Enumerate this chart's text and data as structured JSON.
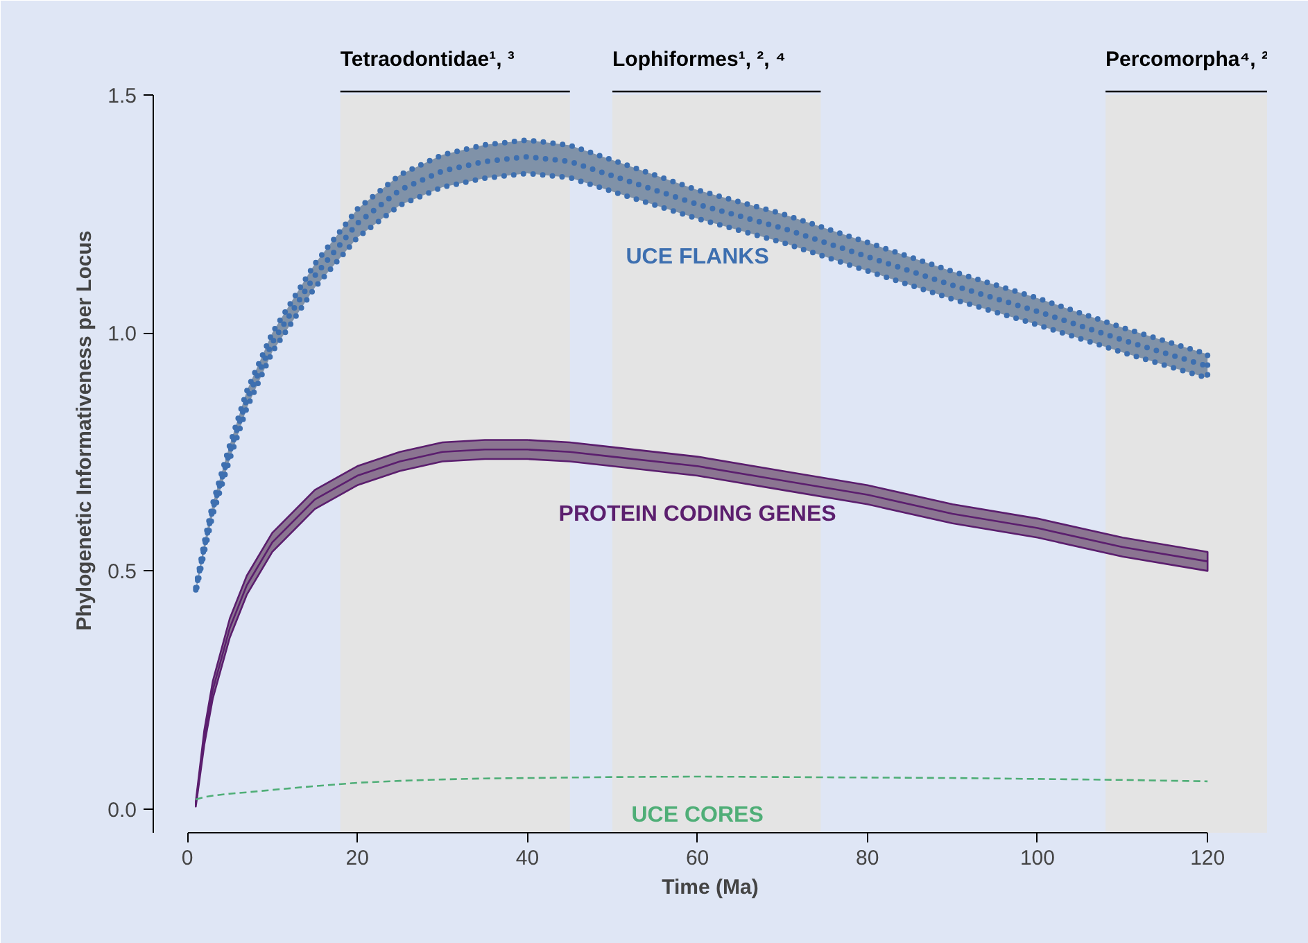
{
  "chart_data": {
    "type": "line",
    "xlabel": "Time (Ma)",
    "ylabel": "Phylogenetic Informativeness per Locus",
    "x": [
      1,
      2,
      3,
      5,
      7,
      10,
      15,
      20,
      25,
      30,
      35,
      40,
      45,
      50,
      60,
      70,
      80,
      90,
      100,
      110,
      120
    ],
    "series": [
      {
        "name": "UCE FLANKS",
        "color": "#3d6fb0",
        "line_style": "dotted",
        "values": [
          0.46,
          0.55,
          0.63,
          0.75,
          0.86,
          0.98,
          1.12,
          1.23,
          1.3,
          1.34,
          1.36,
          1.37,
          1.36,
          1.33,
          1.27,
          1.22,
          1.16,
          1.1,
          1.045,
          0.985,
          0.93
        ],
        "lower": [
          0.455,
          0.54,
          0.618,
          0.735,
          0.842,
          0.96,
          1.095,
          1.2,
          1.268,
          1.306,
          1.325,
          1.335,
          1.326,
          1.297,
          1.24,
          1.19,
          1.13,
          1.071,
          1.017,
          0.959,
          0.905
        ],
        "upper": [
          0.465,
          0.56,
          0.642,
          0.765,
          0.878,
          1.0,
          1.145,
          1.26,
          1.332,
          1.374,
          1.395,
          1.405,
          1.394,
          1.363,
          1.3,
          1.25,
          1.19,
          1.129,
          1.073,
          1.011,
          0.955
        ]
      },
      {
        "name": "PROTEIN CODING GENES",
        "color": "#5b1e6e",
        "line_style": "solid",
        "values": [
          0.01,
          0.15,
          0.25,
          0.38,
          0.47,
          0.56,
          0.65,
          0.7,
          0.73,
          0.75,
          0.755,
          0.755,
          0.75,
          0.74,
          0.72,
          0.69,
          0.66,
          0.62,
          0.59,
          0.55,
          0.52
        ],
        "lower": [
          0.005,
          0.135,
          0.232,
          0.36,
          0.45,
          0.54,
          0.63,
          0.68,
          0.71,
          0.73,
          0.735,
          0.735,
          0.73,
          0.72,
          0.7,
          0.67,
          0.64,
          0.6,
          0.57,
          0.53,
          0.5
        ],
        "upper": [
          0.015,
          0.165,
          0.268,
          0.4,
          0.49,
          0.58,
          0.67,
          0.72,
          0.75,
          0.77,
          0.775,
          0.775,
          0.77,
          0.76,
          0.74,
          0.71,
          0.68,
          0.64,
          0.61,
          0.57,
          0.54
        ]
      },
      {
        "name": "UCE CORES",
        "color": "#4fae77",
        "line_style": "dashed",
        "values": [
          0.02,
          0.025,
          0.028,
          0.032,
          0.035,
          0.04,
          0.048,
          0.055,
          0.059,
          0.062,
          0.064,
          0.065,
          0.066,
          0.067,
          0.068,
          0.067,
          0.066,
          0.065,
          0.063,
          0.061,
          0.058
        ]
      }
    ],
    "bands": [
      {
        "axis": "x",
        "from": 18,
        "to": 45,
        "label": "Tetraodontidae¹, ³",
        "color": "#e4e4e4"
      },
      {
        "axis": "x",
        "from": 50,
        "to": 74.5,
        "label": "Lophiformes¹, ², ⁴",
        "color": "#e4e4e4"
      },
      {
        "axis": "x",
        "from": 108,
        "to": 127,
        "label": "Percomorpha⁴, ²",
        "color": "#e4e4e4"
      }
    ],
    "xlim": [
      -4,
      127
    ],
    "ylim": [
      -0.05,
      1.5
    ],
    "xticks": [
      0,
      20,
      40,
      60,
      80,
      100,
      120
    ],
    "yticks": [
      {
        "value": 0,
        "label": "0.0"
      },
      {
        "value": 0.5,
        "label": "0.5"
      },
      {
        "value": 1,
        "label": "1.0"
      },
      {
        "value": 1.5,
        "label": "1.5"
      }
    ],
    "grid": false,
    "marker": "none"
  }
}
